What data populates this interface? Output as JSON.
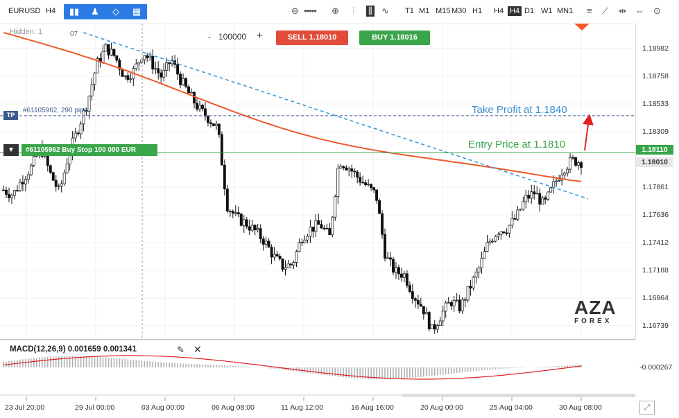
{
  "toolbar": {
    "symbol": "EURUSD",
    "timeframe_label": "H4",
    "timeframes": [
      "T1",
      "M1",
      "M15",
      "M30",
      "H1",
      "H4",
      "D1",
      "W1",
      "MN1"
    ],
    "active_timeframe": "H4"
  },
  "chart_header": {
    "hidden_label": "Hidden: 1",
    "small_number": "07",
    "quantity": "100000",
    "minus": "-",
    "plus": "+",
    "sell_label": "SELL 1.18010",
    "buy_label": "BUY 1.18016"
  },
  "orders": {
    "tp_tag": "TP",
    "tp_line_text": "#61105962, 290 pips",
    "order_arrow": "▼",
    "order_text": "#61105962 Buy Stop 100 000 EUR"
  },
  "annotations": {
    "take_profit": "Take Profit at 1.1840",
    "entry_price": "Entry Price at 1.1810"
  },
  "price_axis": [
    "1.18982",
    "1.18758",
    "1.18533",
    "1.18309",
    "1.18110",
    "1.18010",
    "1.17861",
    "1.17636",
    "1.17412",
    "1.17188",
    "1.16964",
    "1.16739"
  ],
  "price_tags": {
    "entry": "1.18110",
    "current": "1.18010"
  },
  "macd": {
    "label": "MACD(12,26,9) 0.001659 0.001341",
    "axis_value": "-0.000267"
  },
  "logo": {
    "main": "AZA",
    "sub": "FOREX"
  },
  "colors": {
    "bull": "#ffffff",
    "bear": "#111111",
    "ma": "#f05a28",
    "trendline": "#3a9ad9",
    "entry_line": "#3aa54a",
    "tp_line": "#3b5a8c",
    "sell": "#e04b3a",
    "buy": "#3aa54a",
    "signal": "#e02020"
  },
  "chart_data": {
    "type": "candlestick",
    "symbol": "EURUSD",
    "timeframe": "H4",
    "ylim": [
      1.1665,
      1.1912
    ],
    "x_tick_labels": [
      "23 Jul 20:00",
      "29 Jul 00:00",
      "03 Aug 00:00",
      "06 Aug 08:00",
      "11 Aug 12:00",
      "16 Aug 16:00",
      "20 Aug 00:00",
      "25 Aug 04:00",
      "30 Aug 08:00"
    ],
    "approx_close_path": [
      1.1782,
      1.1778,
      1.179,
      1.18,
      1.1815,
      1.1795,
      1.178,
      1.181,
      1.183,
      1.185,
      1.188,
      1.1893,
      1.1886,
      1.187,
      1.1875,
      1.189,
      1.188,
      1.187,
      1.1884,
      1.1868,
      1.1856,
      1.1845,
      1.1838,
      1.183,
      1.177,
      1.176,
      1.1756,
      1.175,
      1.1742,
      1.173,
      1.1722,
      1.1724,
      1.1745,
      1.1752,
      1.1755,
      1.1745,
      1.1805,
      1.18,
      1.1792,
      1.1785,
      1.1778,
      1.173,
      1.1718,
      1.1716,
      1.17,
      1.169,
      1.1672,
      1.1685,
      1.1695,
      1.169,
      1.1705,
      1.172,
      1.174,
      1.175,
      1.1752,
      1.176,
      1.1775,
      1.178,
      1.177,
      1.1785,
      1.1798,
      1.1805,
      1.1804
    ],
    "moving_average": {
      "start": 1.1905,
      "end": 1.1787
    },
    "trendline": {
      "start": 1.1905,
      "end": 1.1775
    },
    "entry_price": 1.1811,
    "take_profit": 1.184,
    "current_bid": 1.1801,
    "current_ask": 1.18016,
    "macd": {
      "macd": 0.001659,
      "signal": 0.001341
    }
  }
}
